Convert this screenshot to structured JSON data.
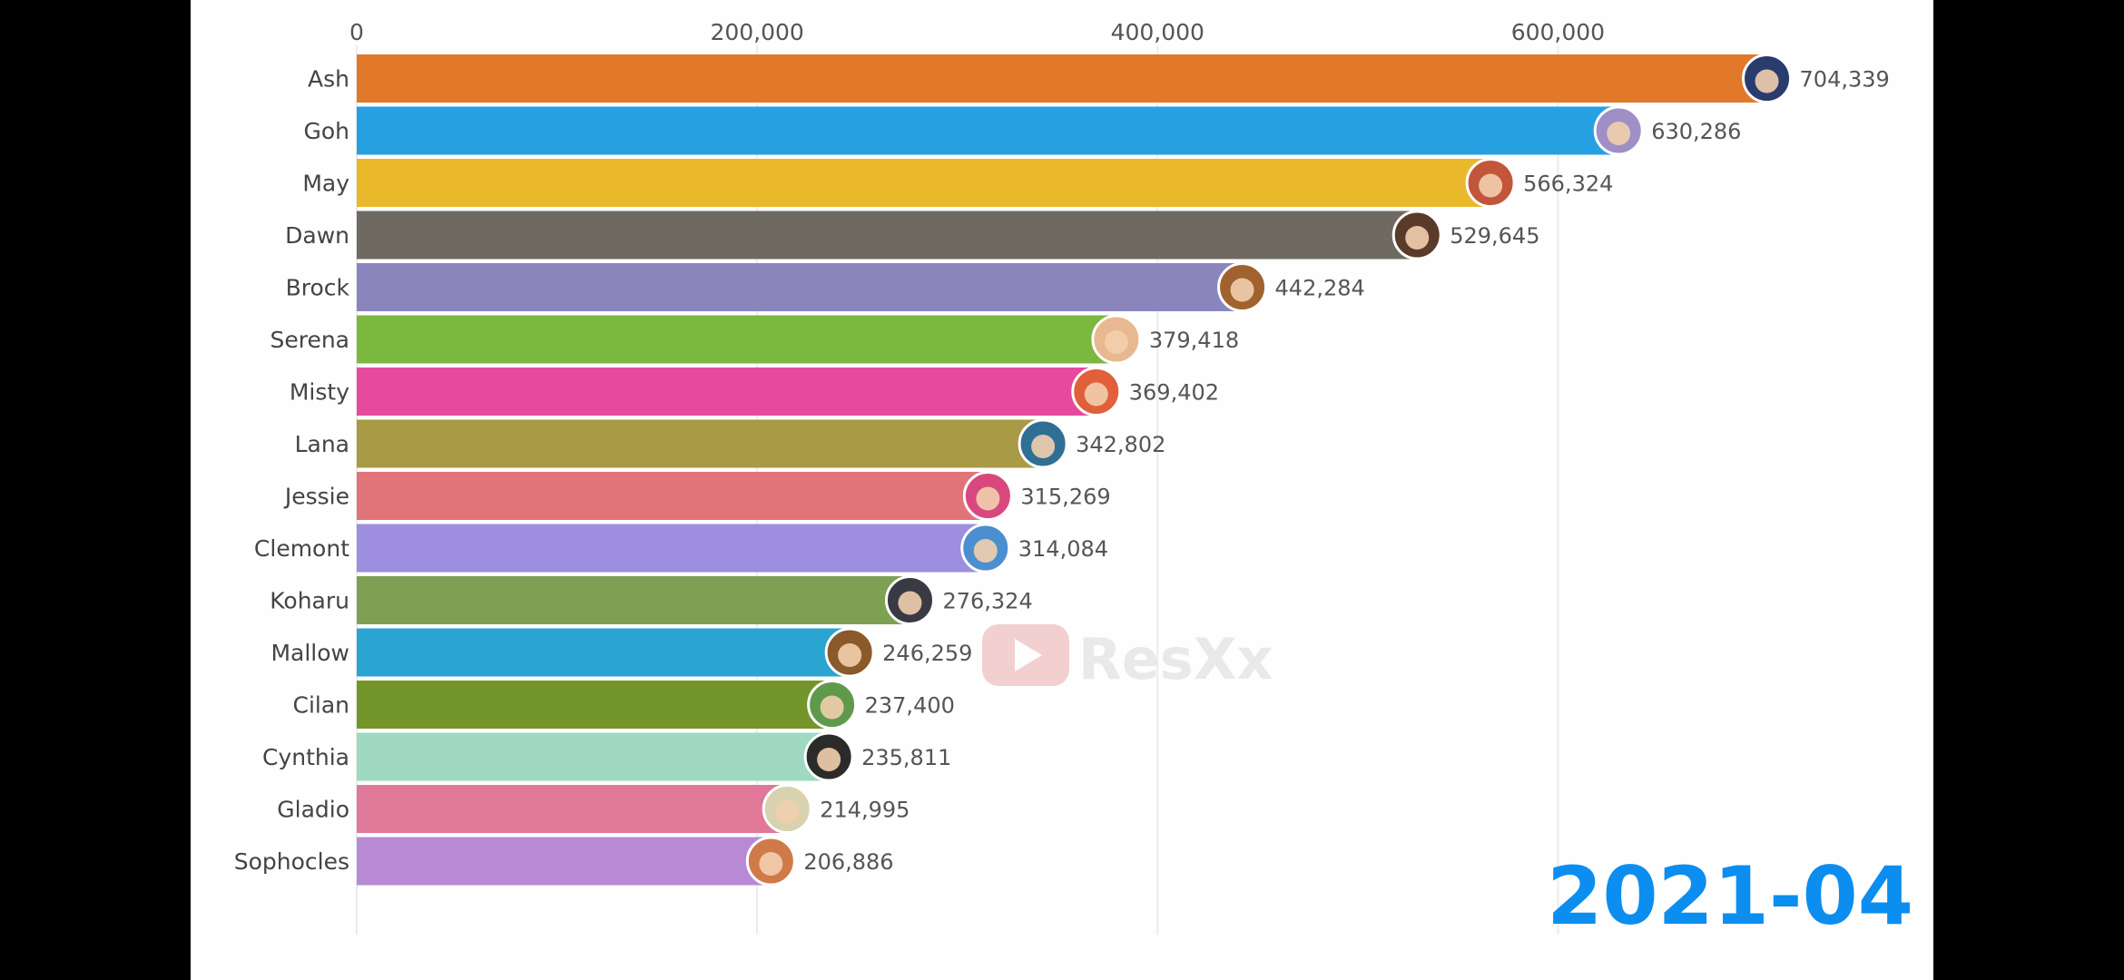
{
  "chart_data": {
    "type": "bar",
    "orientation": "horizontal",
    "animated": "bar chart race",
    "period": "2021-04",
    "xlim": [
      0,
      705000
    ],
    "ticks": [
      0,
      200000,
      400000,
      600000
    ],
    "tick_labels": [
      "0",
      "200,000",
      "400,000",
      "600,000"
    ],
    "grid": true,
    "categories": [
      "Ash",
      "Goh",
      "May",
      "Dawn",
      "Brock",
      "Serena",
      "Misty",
      "Lana",
      "Jessie",
      "Clemont",
      "Koharu",
      "Mallow",
      "Cilan",
      "Cynthia",
      "Gladio",
      "Sophocles"
    ],
    "values": [
      704339,
      630286,
      566324,
      529645,
      442284,
      379418,
      369402,
      342802,
      315269,
      314084,
      276324,
      246259,
      237400,
      235811,
      214995,
      206886
    ],
    "value_labels": [
      "704,339",
      "630,286",
      "566,324",
      "529,645",
      "442,284",
      "379,418",
      "369,402",
      "342,802",
      "315,269",
      "314,084",
      "276,324",
      "246,259",
      "237,400",
      "235,811",
      "214,995",
      "206,886"
    ],
    "colors": [
      "#e2782a",
      "#27a0e2",
      "#e9b92b",
      "#6e6a61",
      "#8b85be",
      "#7bb83f",
      "#e64a9c",
      "#a99a45",
      "#e17479",
      "#9d8ee0",
      "#7da053",
      "#2aa4d1",
      "#73952a",
      "#9fd9c2",
      "#e0789a",
      "#b88ad6"
    ],
    "avatar_colors": [
      "#2a3b6e",
      "#9f8fc7",
      "#c2563a",
      "#5a3a2a",
      "#a0622e",
      "#e8b890",
      "#e0603a",
      "#2f6f94",
      "#d8487e",
      "#4c8fd0",
      "#3a3a44",
      "#8a5a2a",
      "#5f9a4c",
      "#2b2b2b",
      "#d8d2b0",
      "#d07a4a"
    ]
  },
  "watermark": "ResXx"
}
